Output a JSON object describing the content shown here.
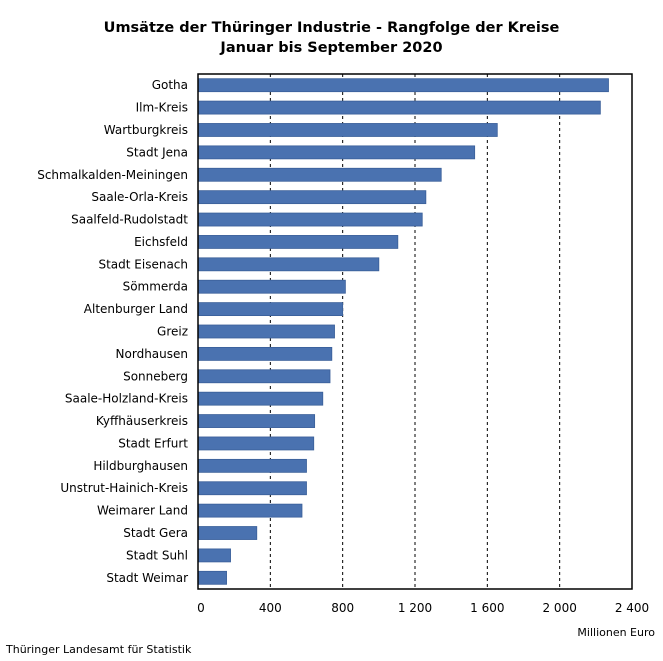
{
  "chart_data": {
    "type": "bar",
    "orientation": "horizontal",
    "title": "Umsätze der Thüringer Industrie - Rangfolge der Kreise",
    "subtitle": "Januar bis September 2020",
    "xlabel": "Millionen Euro",
    "ylabel": "",
    "xlim": [
      0,
      2400
    ],
    "xticks": [
      0,
      400,
      800,
      1200,
      1600,
      2000,
      2400
    ],
    "xtick_labels": [
      "0",
      "400",
      "800",
      "1 200",
      "1 600",
      "2 000",
      "2 400"
    ],
    "grid": "vertical dashed",
    "bar_color": "#4a72b0",
    "categories": [
      "Gotha",
      "Ilm-Kreis",
      "Wartburgkreis",
      "Stadt Jena",
      "Schmalkalden-Meiningen",
      "Saale-Orla-Kreis",
      "Saalfeld-Rudolstadt",
      "Eichsfeld",
      "Stadt Eisenach",
      "Sömmerda",
      "Altenburger Land",
      "Greiz",
      "Nordhausen",
      "Sonneberg",
      "Saale-Holzland-Kreis",
      "Kyffhäuserkreis",
      "Stadt Erfurt",
      "Hildburghausen",
      "Unstrut-Hainich-Kreis",
      "Weimarer Land",
      "Stadt Gera",
      "Stadt Suhl",
      "Stadt Weimar"
    ],
    "values": [
      2270,
      2225,
      1655,
      1530,
      1345,
      1260,
      1240,
      1105,
      1000,
      815,
      800,
      755,
      740,
      730,
      690,
      645,
      640,
      600,
      600,
      575,
      325,
      180,
      158
    ]
  },
  "footer": {
    "source": "Thüringer Landesamt für Statistik"
  }
}
